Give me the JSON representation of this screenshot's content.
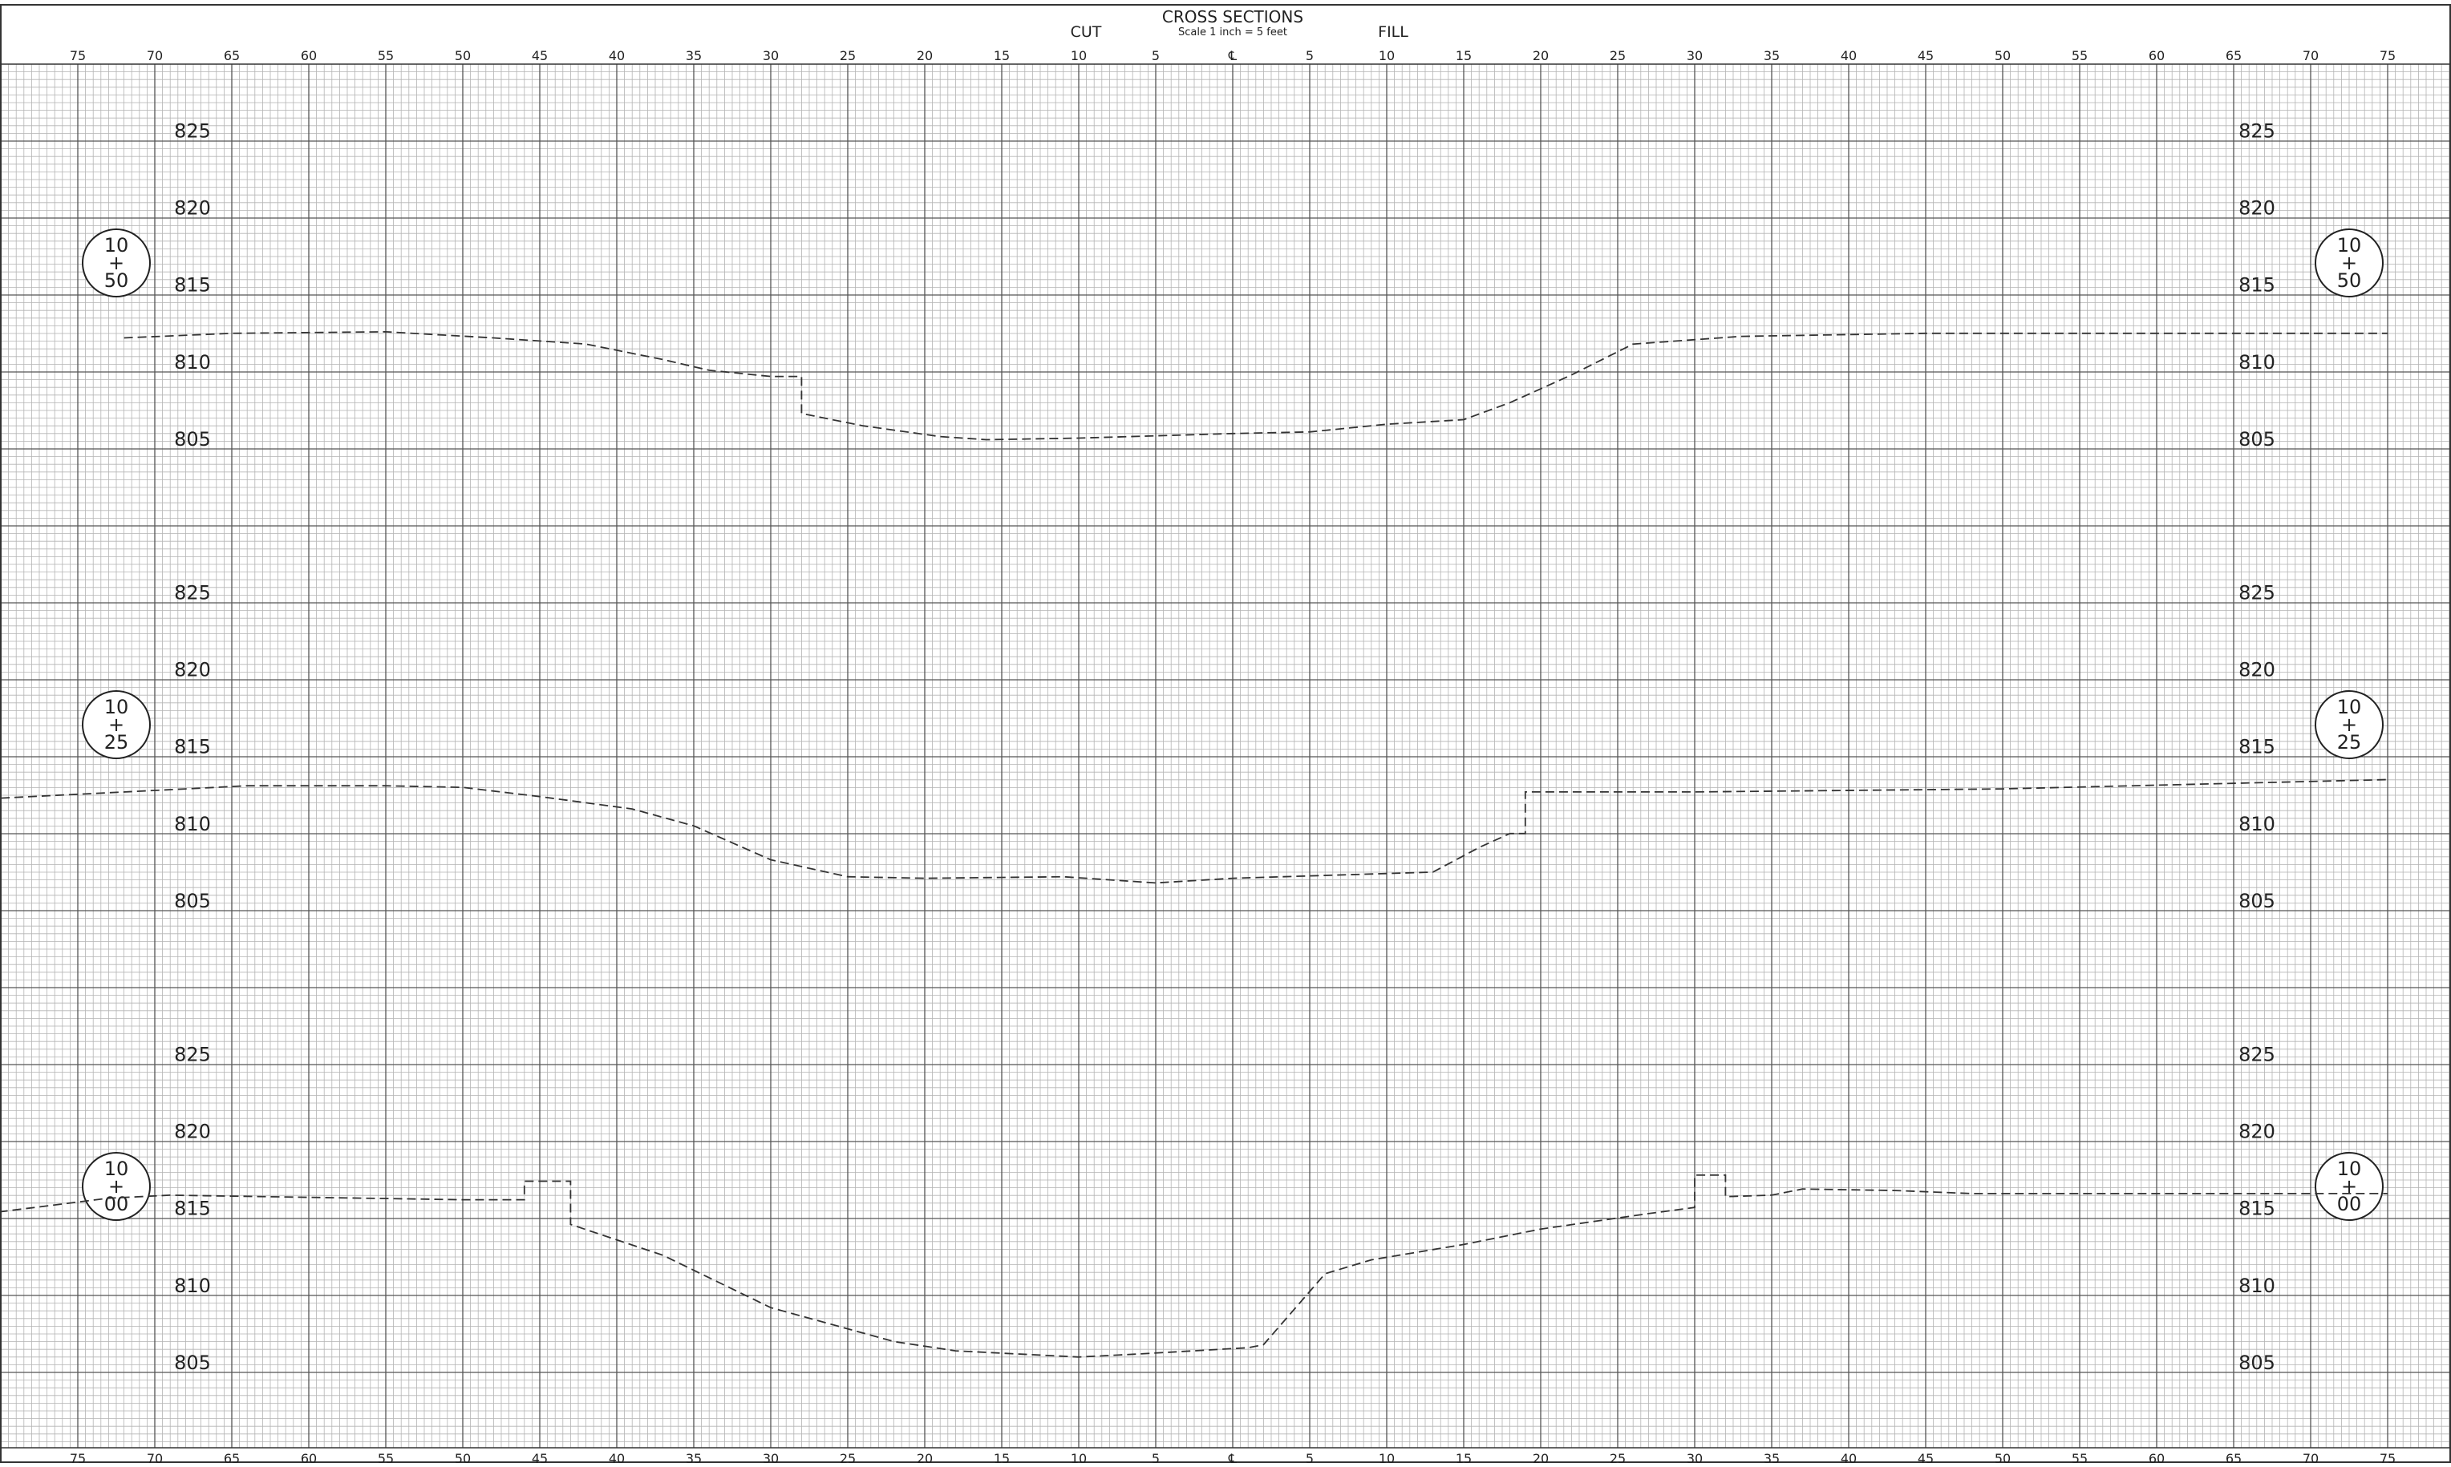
{
  "header": {
    "title": "CROSS SECTIONS",
    "scale": "Scale 1 inch = 5 feet",
    "cut_label": "CUT",
    "fill_label": "FILL"
  },
  "offset_axis": {
    "left_ticks": [
      "75",
      "70",
      "65",
      "60",
      "55",
      "50",
      "45",
      "40",
      "35",
      "30",
      "25",
      "20",
      "15",
      "10",
      "5"
    ],
    "center_tick": "℄",
    "right_ticks": [
      "5",
      "10",
      "15",
      "20",
      "25",
      "30",
      "35",
      "40",
      "45",
      "50",
      "55",
      "60",
      "65",
      "70",
      "75"
    ]
  },
  "colors": {
    "grid_minor": "#b4b4b4",
    "grid_major": "#555555",
    "profile": "#333333",
    "text": "#222222"
  },
  "sections": [
    {
      "station": {
        "top": "10",
        "mid": "+",
        "bot": "50"
      },
      "elevation_labels": [
        "825",
        "820",
        "815",
        "810",
        "805"
      ],
      "profile": [
        [
          -72,
          812.2
        ],
        [
          -65,
          812.5
        ],
        [
          -55,
          812.6
        ],
        [
          -48,
          812.2
        ],
        [
          -42,
          811.8
        ],
        [
          -37,
          810.8
        ],
        [
          -34,
          810.1
        ],
        [
          -30,
          809.7
        ],
        [
          -28,
          809.7
        ],
        [
          -28,
          807.3
        ],
        [
          -24,
          806.5
        ],
        [
          -19,
          805.8
        ],
        [
          -16,
          805.6
        ],
        [
          -10,
          805.7
        ],
        [
          0,
          806.0
        ],
        [
          5,
          806.1
        ],
        [
          10,
          806.6
        ],
        [
          15,
          806.9
        ],
        [
          18,
          808.0
        ],
        [
          22,
          809.8
        ],
        [
          26,
          811.8
        ],
        [
          33,
          812.3
        ],
        [
          45,
          812.5
        ],
        [
          75,
          812.5
        ]
      ]
    },
    {
      "station": {
        "top": "10",
        "mid": "+",
        "bot": "25"
      },
      "elevation_labels": [
        "825",
        "820",
        "815",
        "810",
        "805"
      ],
      "profile": [
        [
          -80,
          812.3
        ],
        [
          -68,
          812.9
        ],
        [
          -64,
          813.1
        ],
        [
          -55,
          813.1
        ],
        [
          -50,
          813.0
        ],
        [
          -45,
          812.4
        ],
        [
          -39,
          811.6
        ],
        [
          -35,
          810.5
        ],
        [
          -30,
          808.3
        ],
        [
          -25,
          807.2
        ],
        [
          -20,
          807.1
        ],
        [
          -11,
          807.2
        ],
        [
          -5,
          806.8
        ],
        [
          0,
          807.1
        ],
        [
          13,
          807.5
        ],
        [
          16,
          809.1
        ],
        [
          18,
          810.0
        ],
        [
          19,
          810.0
        ],
        [
          19,
          812.7
        ],
        [
          30,
          812.7
        ],
        [
          50,
          812.9
        ],
        [
          75,
          813.5
        ]
      ]
    },
    {
      "station": {
        "top": "10",
        "mid": "+",
        "bot": "00"
      },
      "elevation_labels": [
        "825",
        "820",
        "815",
        "810",
        "805"
      ],
      "profile": [
        [
          -81,
          815.3
        ],
        [
          -73,
          816.3
        ],
        [
          -69,
          816.5
        ],
        [
          -50,
          816.2
        ],
        [
          -46,
          816.2
        ],
        [
          -46,
          817.4
        ],
        [
          -43,
          817.4
        ],
        [
          -43,
          814.6
        ],
        [
          -37,
          812.6
        ],
        [
          -30,
          809.2
        ],
        [
          -22,
          807.0
        ],
        [
          -18,
          806.4
        ],
        [
          -10,
          806.0
        ],
        [
          -6,
          806.2
        ],
        [
          1,
          806.6
        ],
        [
          2,
          806.8
        ],
        [
          4,
          809.1
        ],
        [
          6,
          811.4
        ],
        [
          9,
          812.3
        ],
        [
          15,
          813.3
        ],
        [
          20,
          814.3
        ],
        [
          27,
          815.3
        ],
        [
          30,
          815.7
        ],
        [
          30,
          817.8
        ],
        [
          32,
          817.8
        ],
        [
          32,
          816.4
        ],
        [
          35,
          816.5
        ],
        [
          37,
          816.9
        ],
        [
          43,
          816.8
        ],
        [
          48,
          816.6
        ],
        [
          60,
          816.6
        ],
        [
          75,
          816.6
        ]
      ]
    }
  ]
}
